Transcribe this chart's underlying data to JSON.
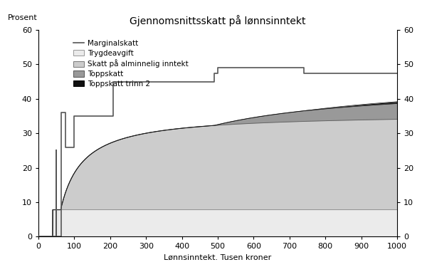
{
  "title": "Gjennomsnittsskatt på lønnsinntekt",
  "xlabel": "Lønnsinntekt. Tusen kroner",
  "ylabel_left": "Prosent",
  "xlim": [
    0,
    1000
  ],
  "ylim": [
    0,
    60
  ],
  "xticks": [
    0,
    100,
    200,
    300,
    400,
    500,
    600,
    700,
    800,
    900,
    1000
  ],
  "yticks": [
    0,
    10,
    20,
    30,
    40,
    50,
    60
  ],
  "bg_color": "#ffffff",
  "trygd_color": "#ebebeb",
  "alm_color": "#cccccc",
  "topp1_color": "#999999",
  "topp2_color": "#111111",
  "marginal_color": "#555555",
  "trygd_rate": 0.078,
  "alm_rate": 0.28,
  "topp1_rate": 0.09,
  "topp2_rate": 0.02,
  "trygd_threshold": 39.6,
  "alm_threshold": 62.0,
  "topp1_threshold": 490.0,
  "topp2_threshold": 740.0,
  "marginal_x": [
    0,
    49.9,
    49.9,
    50,
    50,
    62.9,
    62.9,
    63,
    63,
    75,
    75,
    100,
    100,
    208,
    208,
    490,
    490,
    500,
    500,
    740,
    740,
    1000
  ],
  "marginal_y": [
    0,
    0,
    25,
    25,
    0,
    0,
    0,
    0,
    36,
    36,
    26,
    26,
    35,
    35,
    45,
    45,
    47.5,
    47.5,
    49,
    49,
    47.5,
    47.5
  ],
  "max_income": 1000
}
